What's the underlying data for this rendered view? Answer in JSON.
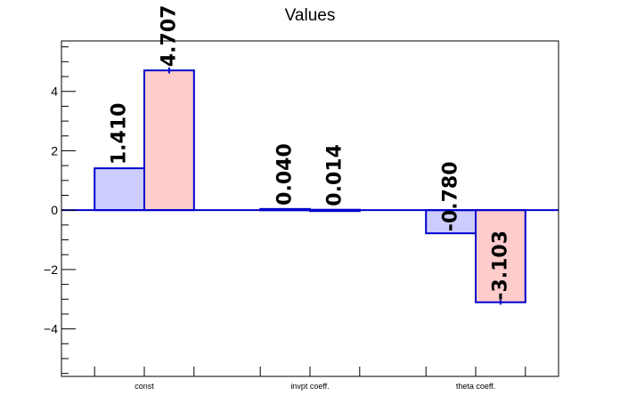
{
  "chart_data": {
    "type": "bar",
    "title": "Values",
    "categories": [
      "const",
      "invpt coeff.",
      "theta coeff."
    ],
    "series": [
      {
        "values": [
          1.41,
          0.04,
          -0.78
        ],
        "errors": [
          0,
          0,
          0
        ],
        "fill": "#ccccff",
        "stroke": "#0000cc"
      },
      {
        "values": [
          4.707,
          0.014,
          -3.103
        ],
        "errors": [
          0.1,
          0,
          0.08
        ],
        "fill": "#ffcccc",
        "stroke": "#0000cc"
      }
    ],
    "value_labels": [
      [
        "1.410",
        "0.040",
        "-0.780"
      ],
      [
        "4.707",
        "0.014",
        "-3.103"
      ]
    ],
    "xlabel": "",
    "ylabel": "",
    "ylim": [
      -5.6,
      5.7
    ],
    "yticks": [
      -4,
      -2,
      0,
      2,
      4
    ],
    "ytick_labels": [
      "−4",
      "−2",
      "0",
      "2",
      "4"
    ],
    "grid": false,
    "zero_line_color": "#0000cc"
  }
}
